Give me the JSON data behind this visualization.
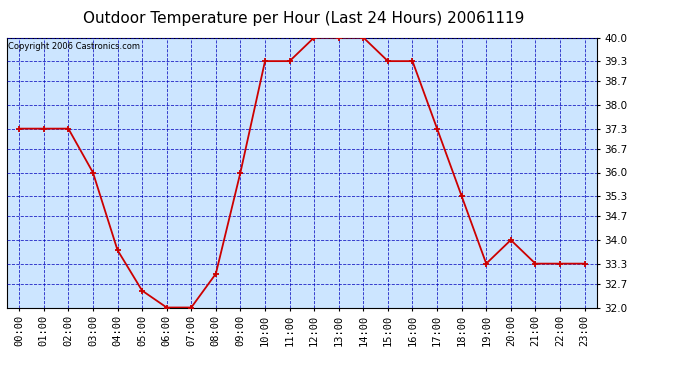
{
  "title": "Outdoor Temperature per Hour (Last 24 Hours) 20061119",
  "copyright": "Copyright 2006 Castronics.com",
  "hours": [
    "00:00",
    "01:00",
    "02:00",
    "03:00",
    "04:00",
    "05:00",
    "06:00",
    "07:00",
    "08:00",
    "09:00",
    "10:00",
    "11:00",
    "12:00",
    "13:00",
    "14:00",
    "15:00",
    "16:00",
    "17:00",
    "18:00",
    "19:00",
    "20:00",
    "21:00",
    "22:00",
    "23:00"
  ],
  "temps": [
    37.3,
    37.3,
    37.3,
    36.0,
    33.7,
    32.5,
    32.0,
    32.0,
    33.0,
    36.0,
    39.3,
    39.3,
    40.0,
    40.0,
    40.0,
    39.3,
    39.3,
    37.3,
    35.3,
    33.3,
    34.0,
    33.3,
    33.3,
    33.3
  ],
  "ylim": [
    32.0,
    40.0
  ],
  "yticks": [
    32.0,
    32.7,
    33.3,
    34.0,
    34.7,
    35.3,
    36.0,
    36.7,
    37.3,
    38.0,
    38.7,
    39.3,
    40.0
  ],
  "line_color": "#cc0000",
  "marker_color": "#cc0000",
  "bg_color": "#cce5ff",
  "grid_color": "#0000bb",
  "title_fontsize": 11,
  "copyright_fontsize": 6,
  "tick_fontsize": 7.5
}
